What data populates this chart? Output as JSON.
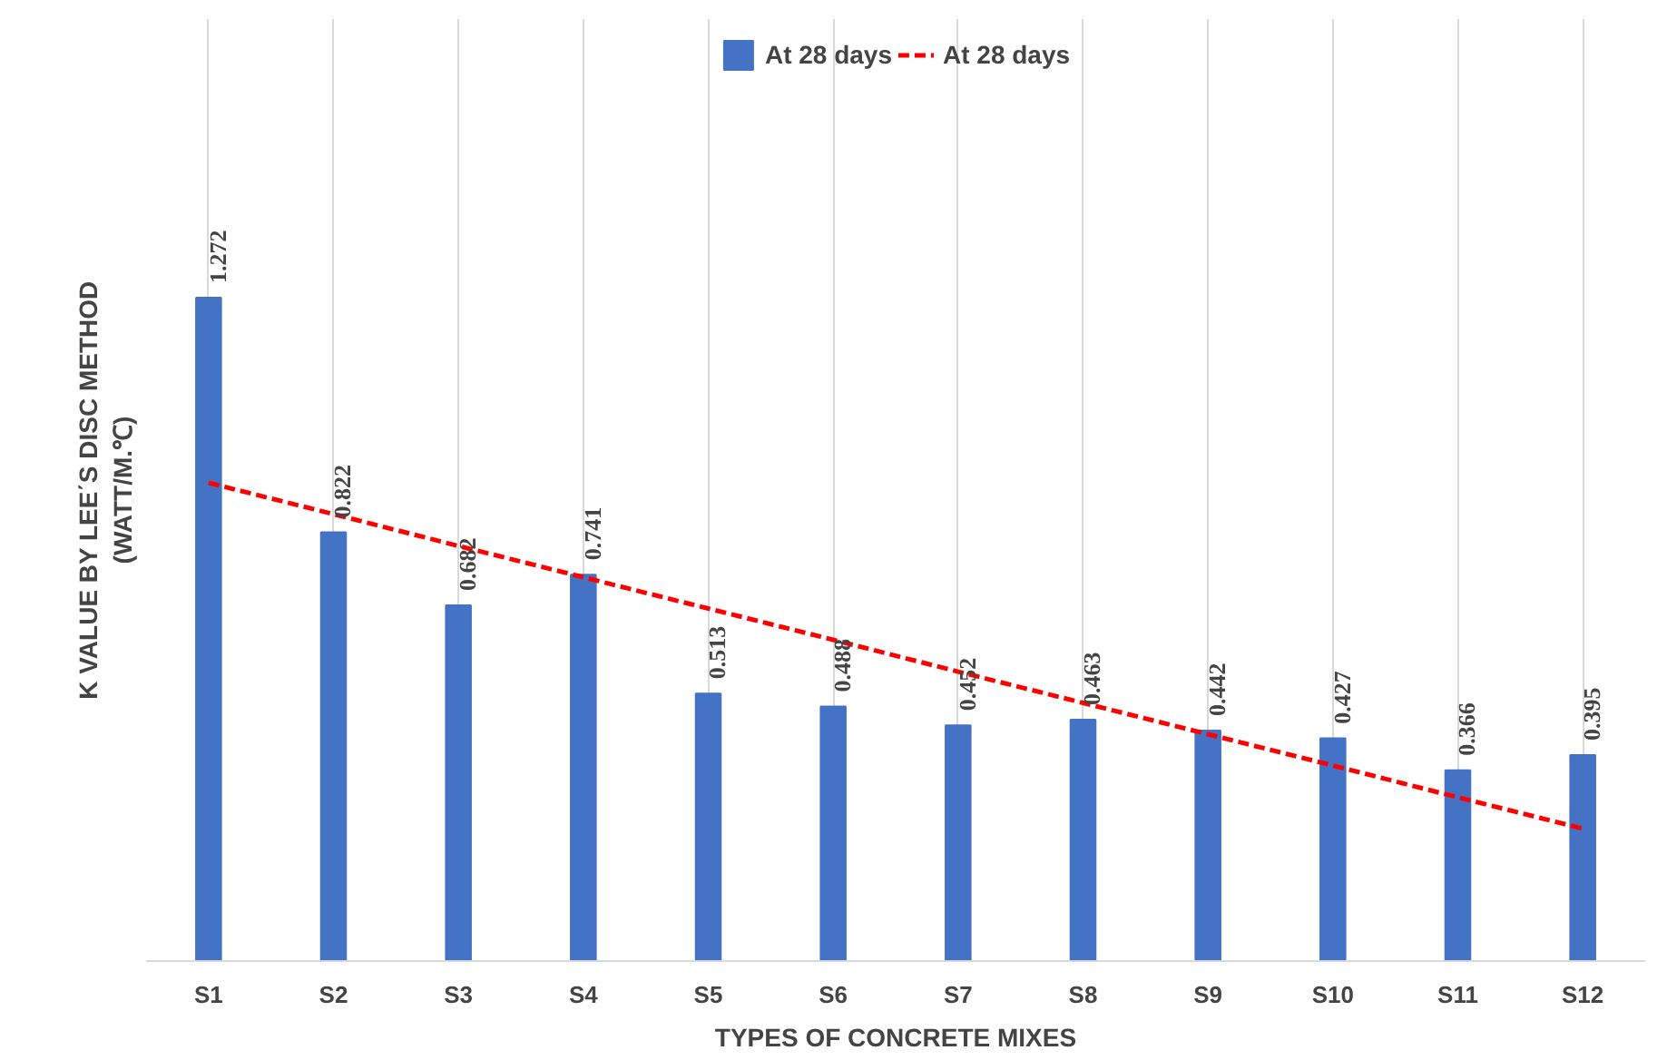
{
  "chart_data": {
    "type": "bar",
    "xlabel": "TYPES OF CONCRETE MIXES",
    "ylabel": "K VALUE BY LEE΄S DISC METHOD\n(WATT/M.℃)",
    "categories": [
      "S1",
      "S2",
      "S3",
      "S4",
      "S5",
      "S6",
      "S7",
      "S8",
      "S9",
      "S10",
      "S11",
      "S12"
    ],
    "series": [
      {
        "name": "At 28 days",
        "color": "#4472c4",
        "values": [
          1.272,
          0.822,
          0.682,
          0.741,
          0.513,
          0.488,
          0.452,
          0.463,
          0.442,
          0.427,
          0.366,
          0.395
        ],
        "value_labels": [
          "1.272",
          "0.822",
          "0.682",
          "0.741",
          "0.513",
          "0.488",
          "0.452",
          "0.463",
          "0.442",
          "0.427",
          "0.366",
          "0.395"
        ]
      },
      {
        "name": "At 28 days",
        "type": "line",
        "color": "#ff0000",
        "line_style": "dashed",
        "values": [
          0.917,
          0.857,
          0.796,
          0.736,
          0.676,
          0.616,
          0.555,
          0.495,
          0.435,
          0.375,
          0.314,
          0.254
        ]
      }
    ],
    "grid": "x",
    "legend": "top"
  }
}
